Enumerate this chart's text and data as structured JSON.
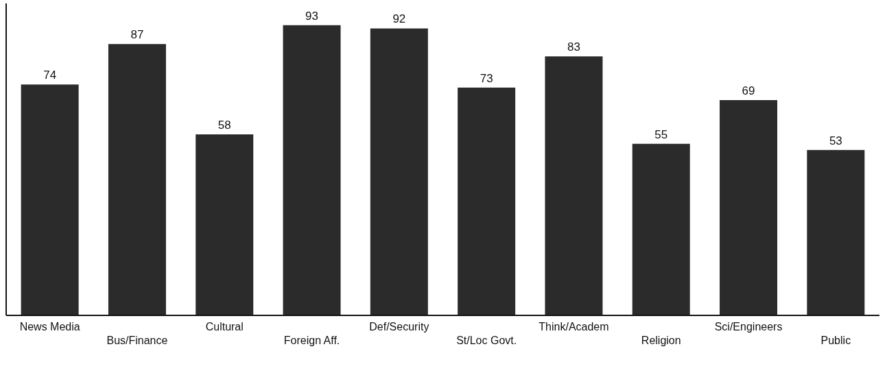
{
  "chart_data": {
    "type": "bar",
    "categories": [
      "News Media",
      "Bus/Finance",
      "Cultural",
      "Foreign Aff.",
      "Def/Security",
      "St/Loc Govt.",
      "Think/Academ",
      "Religion",
      "Sci/Engineers",
      "Public"
    ],
    "values": [
      74,
      87,
      58,
      93,
      92,
      73,
      83,
      55,
      69,
      53
    ],
    "color": "#2b2b2b",
    "data_labels": true,
    "ylim": [
      0,
      100
    ],
    "tick_labels": "x",
    "grid": false,
    "legend": false
  }
}
